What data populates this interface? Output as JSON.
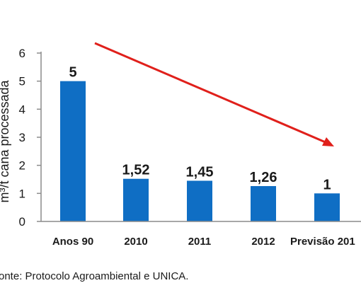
{
  "chart_data": {
    "type": "bar",
    "ylabel": "m³/t cana processada",
    "categories": [
      "Anos 90",
      "2010",
      "2011",
      "2012",
      "Previsão 201"
    ],
    "values": [
      5,
      1.52,
      1.45,
      1.26,
      1
    ],
    "value_labels": [
      "5",
      "1,52",
      "1,45",
      "1,26",
      "1"
    ],
    "yticks": [
      0,
      1,
      2,
      3,
      4,
      5,
      6
    ],
    "ylim": [
      0,
      6
    ],
    "grid": false,
    "legend": "none",
    "trend_arrow": "decreasing",
    "colors": {
      "bar": "#0f6ec4",
      "arrow": "#e0201b"
    }
  },
  "source": "onte: Protocolo Agroambiental e UNICA."
}
